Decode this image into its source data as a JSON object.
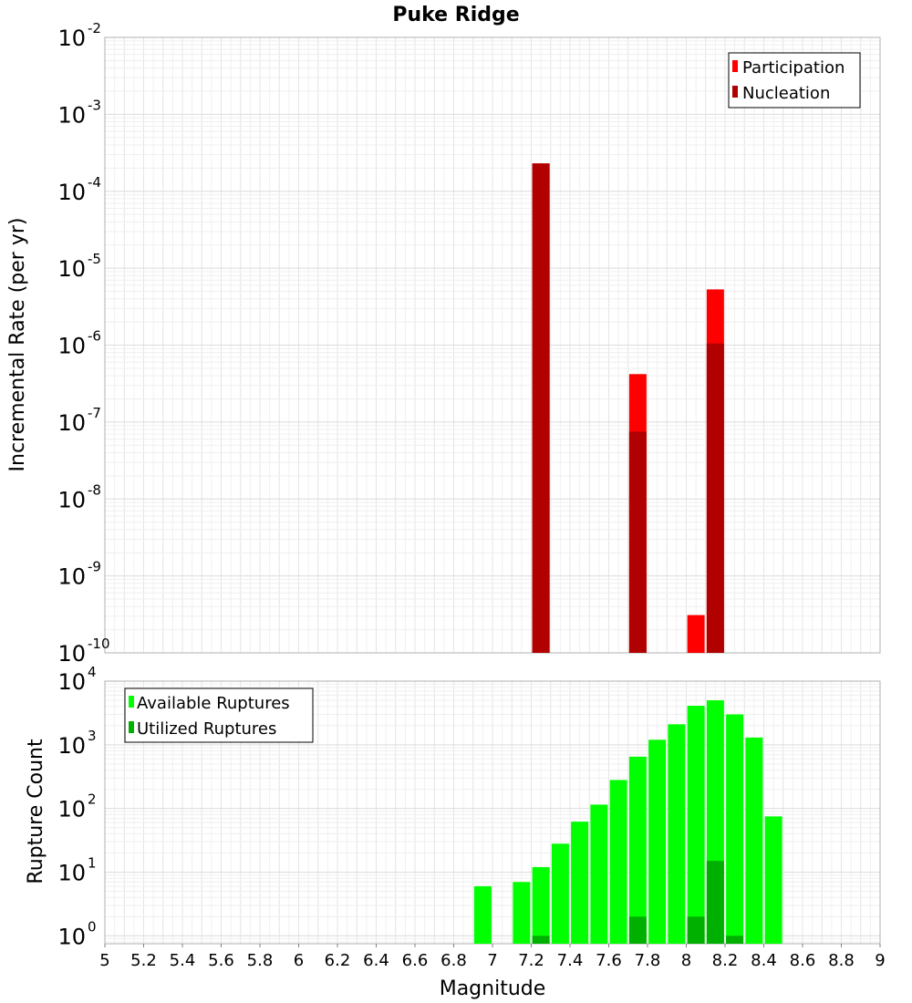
{
  "chart_data": [
    {
      "type": "bar",
      "title": "Puke Ridge",
      "xlabel": "",
      "ylabel": "Incremental Rate (per yr)",
      "yscale": "log",
      "ylim": [
        1e-10,
        0.01
      ],
      "xlim": [
        5,
        9
      ],
      "y_ticks": [
        {
          "base": "10",
          "exp": "-10"
        },
        {
          "base": "10",
          "exp": "-9"
        },
        {
          "base": "10",
          "exp": "-8"
        },
        {
          "base": "10",
          "exp": "-7"
        },
        {
          "base": "10",
          "exp": "-6"
        },
        {
          "base": "10",
          "exp": "-5"
        },
        {
          "base": "10",
          "exp": "-4"
        },
        {
          "base": "10",
          "exp": "-3"
        },
        {
          "base": "10",
          "exp": "-2"
        }
      ],
      "legend": {
        "position": "top-right"
      },
      "series": [
        {
          "name": "Participation",
          "color": "#ff0000",
          "points": [
            {
              "x": 7.25,
              "y": 0.00023
            },
            {
              "x": 7.75,
              "y": 4.2e-07
            },
            {
              "x": 8.05,
              "y": 3.1e-10
            },
            {
              "x": 8.15,
              "y": 5.3e-06
            }
          ]
        },
        {
          "name": "Nucleation",
          "color": "#b00000",
          "points": [
            {
              "x": 7.25,
              "y": 0.00023
            },
            {
              "x": 7.75,
              "y": 7.5e-08
            },
            {
              "x": 8.15,
              "y": 1.05e-06
            }
          ]
        }
      ],
      "grid": true
    },
    {
      "type": "bar",
      "title": "",
      "xlabel": "Magnitude",
      "ylabel": "Rupture Count",
      "yscale": "log",
      "ylim": [
        0.75,
        10000
      ],
      "xlim": [
        5,
        9
      ],
      "x_ticks": [
        "5",
        "5.2",
        "5.4",
        "5.6",
        "5.8",
        "6",
        "6.2",
        "6.4",
        "6.6",
        "6.8",
        "7",
        "7.2",
        "7.4",
        "7.6",
        "7.8",
        "8",
        "8.2",
        "8.4",
        "8.6",
        "8.8",
        "9"
      ],
      "y_ticks": [
        {
          "base": "10",
          "exp": "0"
        },
        {
          "base": "10",
          "exp": "1"
        },
        {
          "base": "10",
          "exp": "2"
        },
        {
          "base": "10",
          "exp": "3"
        },
        {
          "base": "10",
          "exp": "4"
        }
      ],
      "legend": {
        "position": "top-left"
      },
      "series": [
        {
          "name": "Available Ruptures",
          "color": "#00ff00",
          "points": [
            {
              "x": 6.95,
              "y": 6
            },
            {
              "x": 7.15,
              "y": 7
            },
            {
              "x": 7.25,
              "y": 12
            },
            {
              "x": 7.35,
              "y": 28
            },
            {
              "x": 7.45,
              "y": 62
            },
            {
              "x": 7.55,
              "y": 115
            },
            {
              "x": 7.65,
              "y": 280
            },
            {
              "x": 7.75,
              "y": 650
            },
            {
              "x": 7.85,
              "y": 1200
            },
            {
              "x": 7.95,
              "y": 2100
            },
            {
              "x": 8.05,
              "y": 4100
            },
            {
              "x": 8.15,
              "y": 5000
            },
            {
              "x": 8.25,
              "y": 3000
            },
            {
              "x": 8.35,
              "y": 1300
            },
            {
              "x": 8.45,
              "y": 75
            }
          ]
        },
        {
          "name": "Utilized Ruptures",
          "color": "#00b000",
          "points": [
            {
              "x": 7.25,
              "y": 1
            },
            {
              "x": 7.75,
              "y": 2
            },
            {
              "x": 8.05,
              "y": 2
            },
            {
              "x": 8.15,
              "y": 15
            },
            {
              "x": 8.25,
              "y": 1
            }
          ]
        }
      ],
      "grid": true
    }
  ]
}
